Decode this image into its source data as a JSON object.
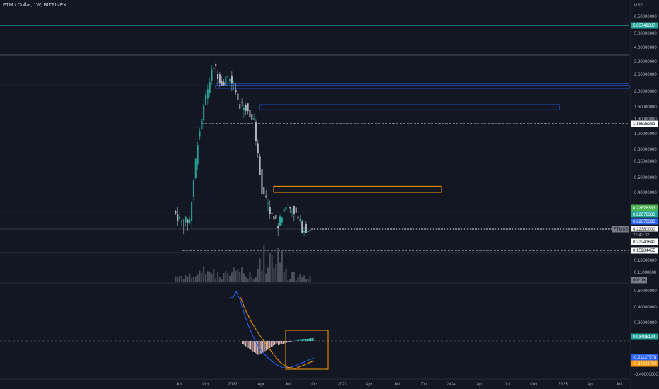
{
  "header": {
    "symbol_title": "FTM / Dollar, 1W, BITFINEX",
    "currency": "USD"
  },
  "colors": {
    "background": "#131722",
    "up": "#26a69a",
    "down": "#b2b5be",
    "volume": "#4a4e59",
    "macd_line": "#2962ff",
    "signal_line": "#ff9800",
    "box_blue": "#2962ff",
    "box_orange": "#ff9800",
    "hline_cyan": "#26c6da",
    "grid": "#1e222d"
  },
  "price_axis": {
    "ticks": [
      "6.50000000",
      "5.00000000",
      "4.00000000",
      "3.20000000",
      "2.60000000",
      "2.00000000",
      "1.60000000",
      "1.30000000",
      "1.00000000",
      "0.80000000",
      "0.65000000",
      "0.50000000",
      "0.40000000",
      "0.13500000",
      "0.11000000"
    ],
    "log_scale": true
  },
  "macd_axis": {
    "ticks": [
      "0.60000000",
      "0.40000000",
      "0.20000000",
      "-0.40000000"
    ]
  },
  "time_axis": {
    "labels": [
      "Jul",
      "Oct",
      "2022",
      "Apr",
      "Jul",
      "Oct",
      "2023",
      "Apr",
      "Jul",
      "Oct",
      "2024",
      "Apr",
      "Jul",
      "Oct",
      "2025",
      "Apr",
      "Jul"
    ]
  },
  "price_tags": {
    "cyan_level": "5.65749367",
    "dashed_level_1": "1.18535361",
    "green_1": "0.22676333",
    "green_2": "0.22676333",
    "blue": "0.22676333",
    "ticker_label": "FTMUSD",
    "last_price": "0.22380000",
    "countdown": "22:42:32",
    "small_label": "0.22241642",
    "dashed_level_2": "0.15984455",
    "volume": "602.1K"
  },
  "macd_tags": {
    "histogram": "0.03496124",
    "macd": "-0.21137578",
    "signal": "-0.24633703"
  },
  "chart_data": {
    "type": "candlestick",
    "series_price": [
      {
        "t": "2021-06",
        "o": 0.3,
        "h": 0.4,
        "l": 0.16,
        "c": 0.25
      },
      {
        "t": "2021-07",
        "o": 0.25,
        "h": 0.3,
        "l": 0.16,
        "c": 0.26
      },
      {
        "t": "2021-08",
        "o": 0.26,
        "h": 0.95,
        "l": 0.24,
        "c": 0.9
      },
      {
        "t": "2021-09",
        "o": 0.9,
        "h": 2.4,
        "l": 0.85,
        "c": 1.8
      },
      {
        "t": "2021-10",
        "o": 1.8,
        "h": 3.4,
        "l": 1.6,
        "c": 2.9
      },
      {
        "t": "2021-11",
        "o": 2.9,
        "h": 3.2,
        "l": 1.9,
        "c": 2.2
      },
      {
        "t": "2021-12",
        "o": 2.2,
        "h": 3.0,
        "l": 1.2,
        "c": 2.5
      },
      {
        "t": "2022-01",
        "o": 2.5,
        "h": 3.5,
        "l": 1.3,
        "c": 1.6
      },
      {
        "t": "2022-02",
        "o": 1.6,
        "h": 2.3,
        "l": 1.3,
        "c": 1.5
      },
      {
        "t": "2022-03",
        "o": 1.5,
        "h": 1.6,
        "l": 1.0,
        "c": 1.2
      },
      {
        "t": "2022-04",
        "o": 1.2,
        "h": 1.3,
        "l": 0.4,
        "c": 0.42
      },
      {
        "t": "2022-05",
        "o": 0.42,
        "h": 0.5,
        "l": 0.2,
        "c": 0.3
      },
      {
        "t": "2022-06",
        "o": 0.3,
        "h": 0.4,
        "l": 0.19,
        "c": 0.24
      },
      {
        "t": "2022-07",
        "o": 0.24,
        "h": 0.35,
        "l": 0.22,
        "c": 0.33
      },
      {
        "t": "2022-08",
        "o": 0.33,
        "h": 0.42,
        "l": 0.28,
        "c": 0.3
      },
      {
        "t": "2022-09",
        "o": 0.3,
        "h": 0.32,
        "l": 0.22,
        "c": 0.23
      },
      {
        "t": "2022-10",
        "o": 0.23,
        "h": 0.25,
        "l": 0.21,
        "c": 0.224
      }
    ],
    "zones": [
      {
        "color": "blue",
        "from": 2.03,
        "to": 2.12
      },
      {
        "color": "blue",
        "from": 1.45,
        "to": 1.57
      },
      {
        "color": "orange",
        "from": 0.4,
        "to": 0.44
      }
    ],
    "levels": [
      5.65749367,
      1.18535361,
      0.15984455
    ]
  }
}
